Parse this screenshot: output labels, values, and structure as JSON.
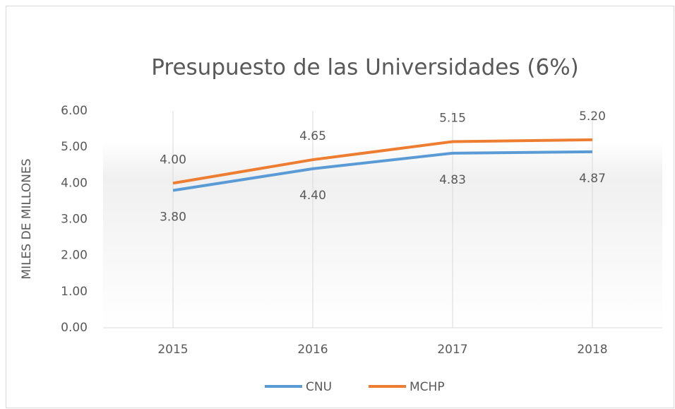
{
  "chart_data": {
    "type": "line",
    "title": "Presupuesto de las Universidades (6%)",
    "y_label": "MILES DE MILLONES",
    "categories": [
      "2015",
      "2016",
      "2017",
      "2018"
    ],
    "series": [
      {
        "name": "CNU",
        "color": "#5b9bd5",
        "values": [
          3.8,
          4.4,
          4.83,
          4.87
        ],
        "value_labels": [
          "3.80",
          "4.40",
          "4.83",
          "4.87"
        ]
      },
      {
        "name": "MCHP",
        "color": "#ed7d31",
        "values": [
          4.0,
          4.65,
          5.15,
          5.2
        ],
        "value_labels": [
          "4.00",
          "4.65",
          "5.15",
          "5.20"
        ]
      }
    ],
    "ylim": [
      0,
      6
    ],
    "yticks": [
      {
        "value": 0,
        "label": "0.00"
      },
      {
        "value": 1,
        "label": "1.00"
      },
      {
        "value": 2,
        "label": "2.00"
      },
      {
        "value": 3,
        "label": "3.00"
      },
      {
        "value": 4,
        "label": "4.00"
      },
      {
        "value": 5,
        "label": "5.00"
      },
      {
        "value": 6,
        "label": "6.00"
      }
    ],
    "grid": true,
    "legend": "bottom"
  }
}
